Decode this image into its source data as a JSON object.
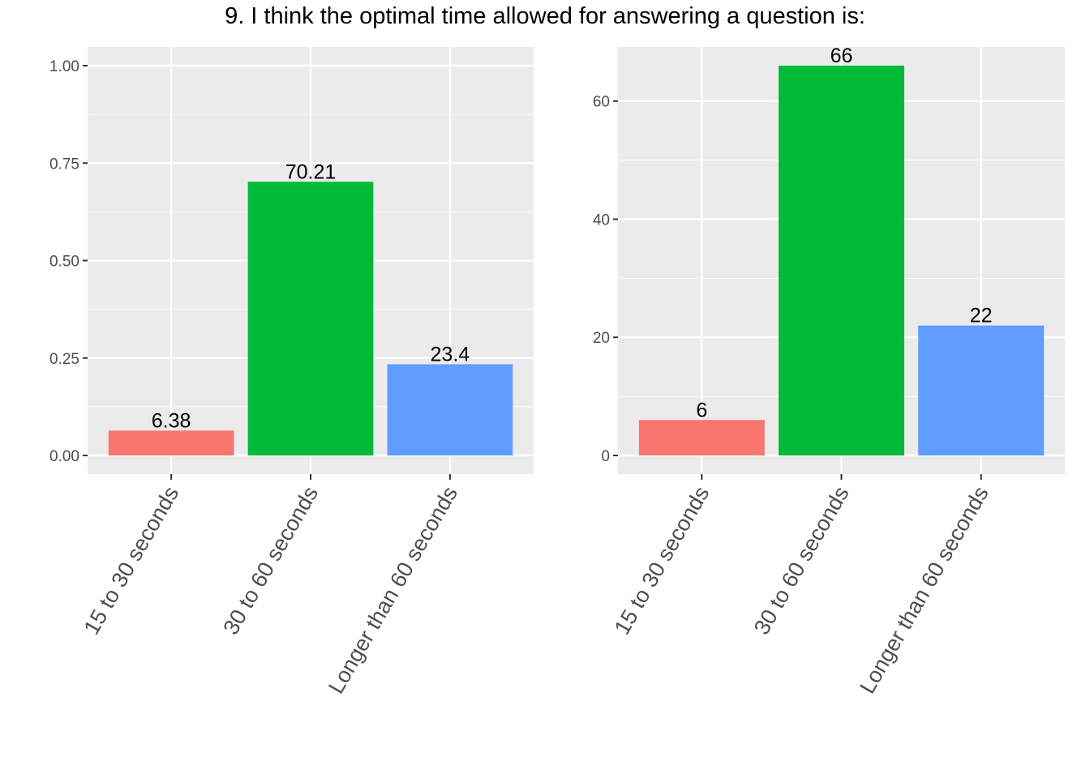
{
  "title": "9. I think the optimal time allowed for answering a question is:",
  "colors": {
    "panel_bg": "#EBEBEB",
    "grid": "#FFFFFF",
    "tick": "#333333",
    "bar_1": "#F8766D",
    "bar_2": "#00BA38",
    "bar_3": "#619CFF"
  },
  "chart_data": [
    {
      "type": "bar",
      "title": "",
      "xlabel": "",
      "ylabel": "",
      "categories": [
        "15 to 30 seconds",
        "30 to 60 seconds",
        "Longer than 60 seconds"
      ],
      "values": [
        0.0638,
        0.7021,
        0.234
      ],
      "data_labels": [
        "6.38",
        "70.21",
        "23.4"
      ],
      "ylim": [
        0,
        1.0
      ],
      "yticks": [
        0,
        0.25,
        0.5,
        0.75,
        1.0
      ],
      "ytick_labels": [
        "0.00",
        "0.25",
        "0.50",
        "0.75",
        "1.00"
      ],
      "grid": true,
      "legend": "none"
    },
    {
      "type": "bar",
      "title": "",
      "xlabel": "",
      "ylabel": "",
      "categories": [
        "15 to 30 seconds",
        "30 to 60 seconds",
        "Longer than 60 seconds"
      ],
      "values": [
        6,
        66,
        22
      ],
      "data_labels": [
        "6",
        "66",
        "22"
      ],
      "ylim": [
        0,
        66
      ],
      "yticks": [
        0,
        20,
        40,
        60
      ],
      "ytick_labels": [
        "0",
        "20",
        "40",
        "60"
      ],
      "grid": true,
      "legend": "none"
    }
  ]
}
